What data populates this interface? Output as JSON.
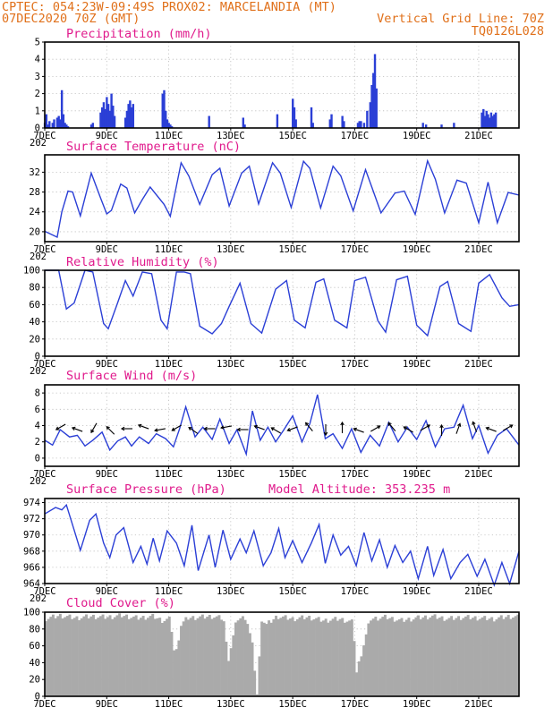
{
  "header": {
    "line1": "CPTEC:   054:23W-09:49S   PROX02: MARCELANDIA (MT)",
    "line2_left": "07DEC2020 70Z (GMT)",
    "line2_right": "Vertical Grid Line: 70Z",
    "line3_right": "TQ0126L028"
  },
  "x_axis": {
    "tick_labels": [
      "7DEC",
      "9DEC",
      "11DEC",
      "13DEC",
      "15DEC",
      "17DEC",
      "19DEC",
      "21DEC"
    ],
    "tick_days": [
      0,
      2,
      4,
      6,
      8,
      10,
      12,
      14
    ],
    "range_days": [
      0,
      15.3
    ],
    "year_fragment": "202"
  },
  "colors": {
    "line": "#2b3fd6",
    "bar": "#2b3fd6",
    "cloud": "#aaaaaa",
    "title": "#e01a8c",
    "header": "#e0701a"
  },
  "chart_data": [
    {
      "type": "bar",
      "title": "Precipitation (mm/h)",
      "ylim": [
        0,
        5
      ],
      "yticks": [
        "0",
        "1",
        "2",
        "3",
        "4",
        "5"
      ],
      "grid": true,
      "x_days": [
        0.0,
        0.05,
        0.1,
        0.15,
        0.25,
        0.3,
        0.4,
        0.45,
        0.5,
        0.55,
        0.6,
        0.65,
        0.7,
        0.75,
        1.5,
        1.55,
        1.8,
        1.85,
        1.9,
        1.95,
        2.0,
        2.05,
        2.1,
        2.15,
        2.2,
        2.25,
        2.6,
        2.65,
        2.7,
        2.75,
        2.8,
        2.85,
        3.8,
        3.85,
        3.9,
        3.95,
        4.0,
        4.05,
        4.1,
        5.3,
        6.4,
        6.45,
        7.5,
        8.0,
        8.05,
        8.1,
        8.6,
        8.65,
        9.2,
        9.25,
        9.6,
        9.65,
        10.1,
        10.15,
        10.2,
        10.3,
        10.4,
        10.5,
        10.55,
        10.6,
        10.65,
        10.7,
        12.2,
        12.3,
        12.8,
        13.2,
        14.1,
        14.15,
        14.2,
        14.25,
        14.3,
        14.35,
        14.4,
        14.45,
        14.5,
        14.55
      ],
      "values": [
        0.3,
        0.8,
        0.2,
        0.4,
        0.3,
        0.5,
        0.6,
        0.7,
        0.5,
        2.2,
        0.8,
        0.3,
        0.2,
        0.1,
        0.2,
        0.3,
        0.9,
        1.2,
        1.5,
        1.1,
        1.8,
        1.4,
        1.0,
        2.0,
        1.3,
        0.7,
        0.6,
        1.0,
        1.4,
        1.6,
        1.2,
        1.4,
        2.0,
        2.2,
        1.0,
        0.5,
        0.3,
        0.2,
        0.1,
        0.7,
        0.6,
        0.2,
        0.8,
        1.7,
        1.2,
        0.5,
        1.2,
        0.3,
        0.5,
        0.8,
        0.7,
        0.4,
        0.3,
        0.4,
        0.4,
        0.3,
        1.0,
        1.5,
        2.5,
        3.2,
        4.3,
        2.3,
        0.3,
        0.2,
        0.2,
        0.3,
        0.9,
        1.1,
        0.7,
        1.0,
        0.8,
        0.6,
        0.9,
        0.7,
        0.8,
        0.9
      ]
    },
    {
      "type": "line",
      "title": "Surface Temperature (nC)",
      "ylim": [
        18,
        35.5
      ],
      "yticks": [
        "20",
        "24",
        "28",
        "32"
      ],
      "grid": true,
      "x_days": [
        0,
        0.4,
        0.55,
        0.75,
        0.9,
        1.15,
        1.5,
        1.8,
        2.0,
        2.15,
        2.45,
        2.65,
        2.9,
        3.15,
        3.4,
        3.85,
        4.05,
        4.4,
        4.65,
        5.0,
        5.4,
        5.65,
        5.95,
        6.35,
        6.6,
        6.9,
        7.35,
        7.6,
        7.95,
        8.35,
        8.55,
        8.9,
        9.3,
        9.55,
        9.95,
        10.35,
        10.55,
        10.85,
        11.3,
        11.6,
        11.95,
        12.35,
        12.6,
        12.9,
        13.3,
        13.6,
        14.0,
        14.3,
        14.6,
        14.95,
        15.3
      ],
      "values": [
        20.1,
        18.9,
        24.0,
        28.2,
        28.0,
        23.2,
        31.8,
        26.8,
        23.6,
        24.3,
        29.6,
        28.8,
        23.8,
        26.5,
        29.0,
        25.5,
        23.1,
        33.9,
        31.2,
        25.5,
        31.5,
        32.8,
        25.2,
        31.8,
        33.2,
        25.6,
        33.9,
        31.8,
        24.9,
        34.2,
        32.8,
        24.8,
        33.2,
        31.3,
        24.2,
        32.5,
        29.0,
        23.8,
        27.8,
        28.2,
        23.5,
        34.3,
        30.6,
        23.8,
        30.4,
        29.8,
        21.8,
        30.0,
        21.8,
        27.9,
        27.4
      ]
    },
    {
      "type": "line",
      "title": "Relative Humidity (%)",
      "ylim": [
        0,
        100
      ],
      "yticks": [
        "0",
        "20",
        "40",
        "60",
        "80",
        "100"
      ],
      "grid": true,
      "x_days": [
        0,
        0.45,
        0.7,
        0.95,
        1.3,
        1.55,
        1.9,
        2.05,
        2.35,
        2.6,
        2.85,
        3.15,
        3.45,
        3.75,
        3.95,
        4.25,
        4.5,
        4.7,
        5.0,
        5.4,
        5.7,
        5.95,
        6.3,
        6.65,
        7.0,
        7.45,
        7.8,
        8.05,
        8.4,
        8.75,
        9.0,
        9.35,
        9.75,
        10.0,
        10.35,
        10.75,
        11.0,
        11.35,
        11.7,
        12.0,
        12.35,
        12.75,
        13.0,
        13.35,
        13.75,
        14.0,
        14.35,
        14.75,
        15.0,
        15.3
      ],
      "values": [
        100,
        100,
        55,
        62,
        100,
        98,
        38,
        32,
        62,
        88,
        70,
        98,
        96,
        42,
        32,
        98,
        98,
        96,
        35,
        26,
        38,
        58,
        85,
        38,
        27,
        78,
        88,
        42,
        33,
        86,
        90,
        42,
        33,
        88,
        92,
        41,
        28,
        89,
        93,
        36,
        24,
        81,
        87,
        38,
        29,
        85,
        95,
        68,
        58,
        60
      ]
    },
    {
      "type": "line",
      "title": "Surface Wind (m/s)",
      "ylim": [
        -1,
        9
      ],
      "yticks": [
        "0",
        "2",
        "4",
        "6",
        "8"
      ],
      "grid": true,
      "x_days": [
        0,
        0.25,
        0.5,
        0.8,
        1.05,
        1.3,
        1.55,
        1.85,
        2.1,
        2.35,
        2.6,
        2.8,
        3.05,
        3.35,
        3.6,
        3.9,
        4.15,
        4.35,
        4.55,
        4.85,
        5.1,
        5.4,
        5.65,
        5.95,
        6.2,
        6.5,
        6.7,
        6.95,
        7.2,
        7.45,
        7.7,
        8.0,
        8.3,
        8.55,
        8.8,
        9.05,
        9.3,
        9.6,
        9.9,
        10.2,
        10.5,
        10.8,
        11.1,
        11.4,
        11.7,
        12.0,
        12.3,
        12.6,
        12.9,
        13.2,
        13.5,
        13.8,
        14.0,
        14.3,
        14.6,
        14.9,
        15.3
      ],
      "values": [
        2.2,
        1.6,
        3.5,
        2.6,
        2.8,
        1.5,
        2.2,
        3.2,
        1.0,
        2.1,
        2.6,
        1.5,
        2.6,
        1.8,
        3.0,
        2.4,
        1.4,
        3.6,
        6.3,
        2.6,
        3.8,
        2.3,
        4.8,
        1.8,
        3.5,
        0.5,
        5.8,
        2.2,
        3.8,
        2.0,
        3.4,
        5.2,
        2.0,
        4.2,
        7.8,
        2.4,
        3.0,
        1.2,
        3.6,
        0.7,
        2.8,
        1.5,
        4.4,
        2.0,
        3.8,
        2.3,
        4.6,
        1.4,
        3.6,
        3.8,
        6.5,
        2.4,
        4.0,
        0.6,
        2.8,
        3.6,
        1.6
      ]
    },
    {
      "type": "line",
      "title": "Surface Pressure (hPa)",
      "annotation": "Model Altitude: 353.235  m",
      "ylim": [
        964,
        974.5
      ],
      "yticks": [
        "964",
        "966",
        "968",
        "970",
        "972",
        "974"
      ],
      "grid": true,
      "x_days": [
        0,
        0.35,
        0.55,
        0.7,
        0.95,
        1.15,
        1.45,
        1.65,
        1.9,
        2.1,
        2.3,
        2.55,
        2.85,
        3.1,
        3.3,
        3.5,
        3.7,
        3.95,
        4.25,
        4.5,
        4.75,
        4.95,
        5.3,
        5.5,
        5.75,
        6.0,
        6.3,
        6.5,
        6.75,
        7.05,
        7.3,
        7.55,
        7.75,
        8.0,
        8.3,
        8.6,
        8.85,
        9.05,
        9.3,
        9.55,
        9.8,
        10.05,
        10.3,
        10.55,
        10.8,
        11.05,
        11.3,
        11.55,
        11.8,
        12.05,
        12.35,
        12.55,
        12.85,
        13.1,
        13.4,
        13.65,
        13.95,
        14.2,
        14.5,
        14.75,
        15.0,
        15.3
      ],
      "values": [
        972.6,
        973.4,
        973.1,
        973.7,
        970.6,
        968.1,
        971.8,
        972.6,
        969.0,
        967.2,
        970.0,
        970.9,
        966.6,
        968.6,
        966.4,
        969.6,
        966.8,
        970.5,
        969.0,
        966.2,
        971.2,
        965.6,
        970.0,
        966.0,
        970.6,
        967.0,
        969.5,
        967.8,
        970.5,
        966.2,
        967.8,
        970.8,
        967.2,
        969.3,
        966.6,
        969.0,
        971.3,
        966.5,
        970.0,
        967.5,
        968.6,
        966.2,
        970.3,
        966.8,
        969.4,
        966.0,
        968.7,
        966.6,
        968.0,
        964.6,
        968.6,
        965.0,
        968.2,
        964.6,
        966.6,
        967.6,
        964.9,
        967.0,
        963.8,
        966.6,
        964.0,
        968.0
      ]
    },
    {
      "type": "area",
      "title": "Cloud Cover (%)",
      "ylim": [
        0,
        100
      ],
      "yticks": [
        "0",
        "20",
        "40",
        "60",
        "80",
        "100"
      ],
      "grid": true,
      "x_days": [
        0,
        0.5,
        1.0,
        1.5,
        2.0,
        2.5,
        3.0,
        3.5,
        3.8,
        4.05,
        4.2,
        4.4,
        4.6,
        5.0,
        5.4,
        5.7,
        5.8,
        5.9,
        6.2,
        6.5,
        6.7,
        6.85,
        7.0,
        7.15,
        7.5,
        8.0,
        8.5,
        9.0,
        9.5,
        9.95,
        10.05,
        10.5,
        11.0,
        11.5,
        12.0,
        12.5,
        13.0,
        13.5,
        14.0,
        14.5,
        15.0,
        15.3
      ],
      "values": [
        92,
        96,
        93,
        95,
        94,
        96,
        93,
        95,
        90,
        92,
        45,
        85,
        93,
        94,
        95,
        93,
        88,
        40,
        92,
        94,
        60,
        1,
        92,
        85,
        95,
        92,
        94,
        90,
        92,
        88,
        27,
        92,
        94,
        90,
        93,
        95,
        92,
        94,
        93,
        92,
        95,
        94
      ]
    }
  ]
}
